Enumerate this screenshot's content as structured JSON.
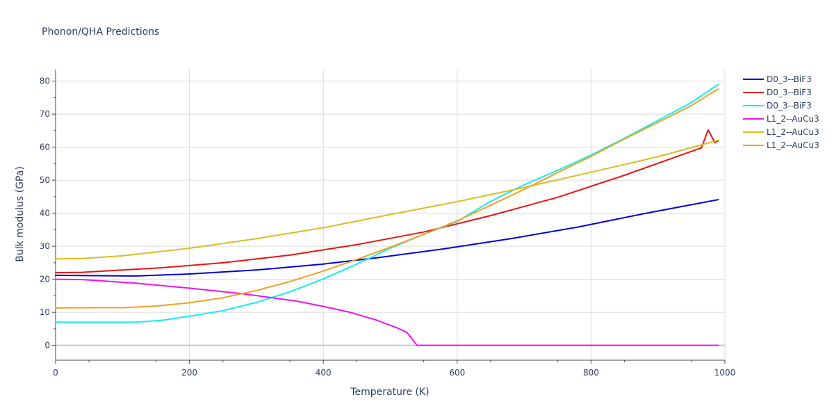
{
  "chart_data": {
    "type": "line",
    "title": "Phonon/QHA Predictions",
    "xlabel": "Temperature (K)",
    "ylabel": "Bulk modulus (GPa)",
    "xlim": [
      0,
      1000
    ],
    "ylim": [
      -4.5,
      83.5
    ],
    "x_ticks": [
      0,
      200,
      400,
      600,
      800,
      1000
    ],
    "y_ticks": [
      0,
      10,
      20,
      30,
      40,
      50,
      60,
      70,
      80
    ],
    "grid": true,
    "legend_position": "top-right",
    "series": [
      {
        "name": "D0_3--BiF3",
        "color": "#0000dd",
        "points": [
          [
            0,
            21.2
          ],
          [
            50,
            21.1
          ],
          [
            120,
            21.0
          ],
          [
            200,
            21.6
          ],
          [
            300,
            22.8
          ],
          [
            400,
            24.6
          ],
          [
            480,
            26.5
          ],
          [
            580,
            29.2
          ],
          [
            680,
            32.3
          ],
          [
            780,
            35.8
          ],
          [
            880,
            39.9
          ],
          [
            990,
            44.1
          ]
        ]
      },
      {
        "name": "D0_3--BiF3",
        "color": "#ee1111",
        "points": [
          [
            0,
            22.0
          ],
          [
            40,
            22.1
          ],
          [
            100,
            22.8
          ],
          [
            160,
            23.5
          ],
          [
            250,
            25.0
          ],
          [
            350,
            27.3
          ],
          [
            450,
            30.5
          ],
          [
            550,
            34.3
          ],
          [
            650,
            39.3
          ],
          [
            750,
            44.8
          ],
          [
            850,
            51.5
          ],
          [
            965,
            59.8
          ],
          [
            975,
            65.2
          ],
          [
            985,
            61.4
          ],
          [
            990,
            61.9
          ]
        ]
      },
      {
        "name": "D0_3--BiF3",
        "color": "#11eeee",
        "points": [
          [
            0,
            7.0
          ],
          [
            60,
            7.0
          ],
          [
            120,
            7.0
          ],
          [
            160,
            7.6
          ],
          [
            200,
            8.8
          ],
          [
            250,
            10.5
          ],
          [
            300,
            13.0
          ],
          [
            350,
            16.2
          ],
          [
            400,
            20.1
          ],
          [
            450,
            24.6
          ],
          [
            500,
            29.4
          ],
          [
            550,
            33.6
          ],
          [
            600,
            37.5
          ],
          [
            650,
            43.6
          ],
          [
            700,
            48.6
          ],
          [
            750,
            53.0
          ],
          [
            800,
            57.6
          ],
          [
            850,
            62.7
          ],
          [
            900,
            68.1
          ],
          [
            950,
            73.5
          ],
          [
            990,
            79.0
          ]
        ]
      },
      {
        "name": "L1_2--AuCu3",
        "color": "#ee11ee",
        "points": [
          [
            0,
            20.0
          ],
          [
            40,
            19.9
          ],
          [
            120,
            18.8
          ],
          [
            200,
            17.3
          ],
          [
            280,
            15.6
          ],
          [
            360,
            13.4
          ],
          [
            400,
            11.8
          ],
          [
            440,
            10.0
          ],
          [
            480,
            7.6
          ],
          [
            510,
            5.3
          ],
          [
            525,
            3.9
          ],
          [
            540,
            0.0
          ],
          [
            600,
            0.0
          ],
          [
            700,
            0.0
          ],
          [
            800,
            0.0
          ],
          [
            900,
            0.0
          ],
          [
            990,
            0.0
          ]
        ]
      },
      {
        "name": "L1_2--AuCu3",
        "color": "#ddbb22",
        "points": [
          [
            0,
            26.2
          ],
          [
            40,
            26.3
          ],
          [
            100,
            27.1
          ],
          [
            200,
            29.4
          ],
          [
            300,
            32.3
          ],
          [
            400,
            35.6
          ],
          [
            500,
            39.6
          ],
          [
            600,
            43.5
          ],
          [
            700,
            47.8
          ],
          [
            800,
            52.4
          ],
          [
            900,
            57.1
          ],
          [
            990,
            62.1
          ]
        ]
      },
      {
        "name": "L1_2--AuCu3",
        "color": "#f4a021",
        "points": [
          [
            0,
            11.3
          ],
          [
            50,
            11.4
          ],
          [
            100,
            11.4
          ],
          [
            150,
            11.9
          ],
          [
            200,
            12.9
          ],
          [
            250,
            14.4
          ],
          [
            300,
            16.6
          ],
          [
            350,
            19.3
          ],
          [
            400,
            22.5
          ],
          [
            450,
            26.0
          ],
          [
            500,
            29.7
          ],
          [
            550,
            33.6
          ],
          [
            600,
            37.7
          ],
          [
            650,
            42.4
          ],
          [
            700,
            47.2
          ],
          [
            750,
            52.3
          ],
          [
            800,
            57.2
          ],
          [
            850,
            62.5
          ],
          [
            900,
            67.5
          ],
          [
            950,
            72.6
          ],
          [
            990,
            77.6
          ]
        ]
      }
    ]
  }
}
